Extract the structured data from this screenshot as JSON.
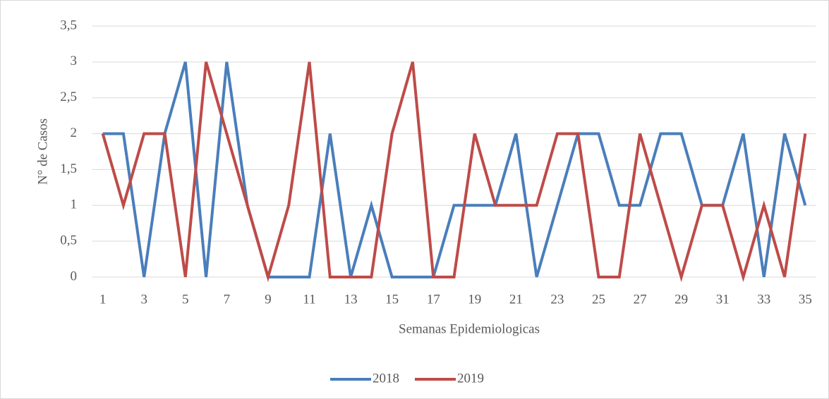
{
  "chart_data": {
    "type": "line",
    "x_label": "Semanas Epidemiologicas",
    "y_label": "N° de Casos",
    "categories": [
      "1",
      null,
      "3",
      null,
      "5",
      null,
      "7",
      null,
      "9",
      null,
      "11",
      null,
      "13",
      null,
      "15",
      null,
      "17",
      null,
      "19",
      null,
      "21",
      null,
      "23",
      null,
      "25",
      null,
      "27",
      null,
      "29",
      null,
      "31",
      null,
      "33",
      null,
      "35"
    ],
    "series": [
      {
        "name": "2018",
        "color": "#4a7ebb",
        "values": [
          2,
          2,
          0,
          2,
          3,
          0,
          3,
          1,
          0,
          0,
          0,
          2,
          0,
          1,
          0,
          0,
          0,
          1,
          1,
          1,
          2,
          0,
          1,
          2,
          2,
          1,
          1,
          2,
          2,
          1,
          1,
          2,
          0,
          2,
          1
        ]
      },
      {
        "name": "2019",
        "color": "#be4b48",
        "values": [
          2,
          1,
          2,
          2,
          0,
          3,
          2,
          1,
          0,
          1,
          3,
          0,
          0,
          0,
          2,
          3,
          0,
          0,
          2,
          1,
          1,
          1,
          2,
          2,
          0,
          0,
          2,
          1,
          0,
          1,
          1,
          0,
          1,
          0,
          2
        ]
      }
    ],
    "ylim": [
      0,
      3.5
    ],
    "yticks": [
      0,
      {
        "value": 0.5,
        "label": "0,5"
      },
      1,
      {
        "value": 1.5,
        "label": "1,5"
      },
      2,
      {
        "value": 2.5,
        "label": "2,5"
      },
      3,
      {
        "value": 3.5,
        "label": "3,5"
      }
    ],
    "grid": true,
    "legend": "bottom"
  }
}
